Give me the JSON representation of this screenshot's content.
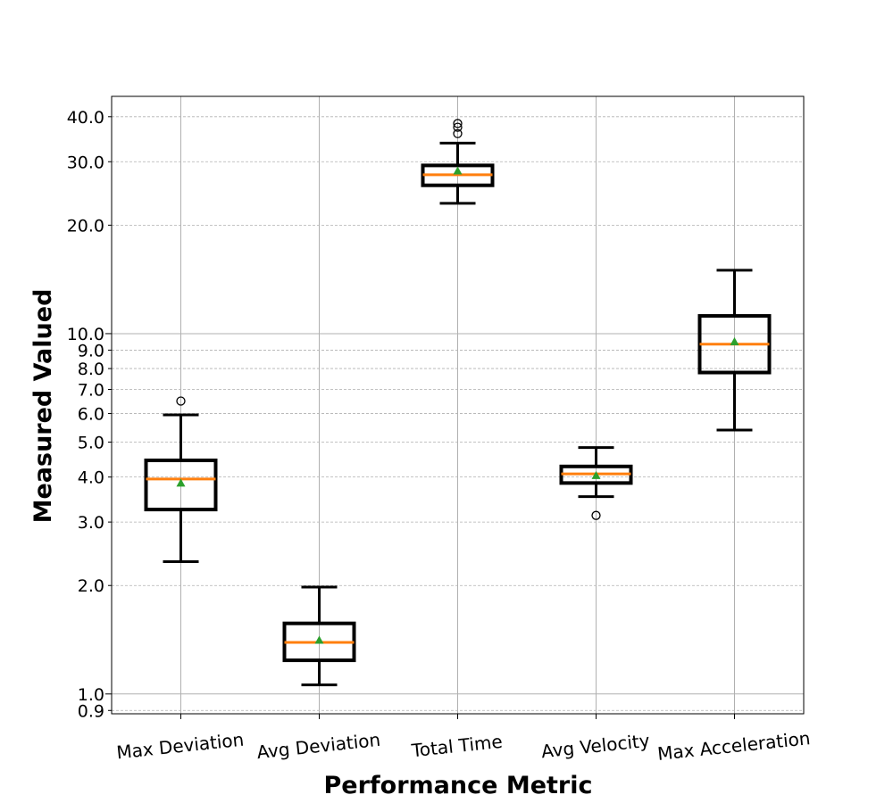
{
  "chart_data": {
    "type": "box",
    "xlabel": "Performance Metric",
    "ylabel": "Measured Valued",
    "yscale": "log",
    "ylim": [
      0.87,
      47
    ],
    "grid": true,
    "ticks": {
      "major": [
        "1.0",
        "10.0"
      ],
      "minor": [
        "0.9",
        "2.0",
        "3.0",
        "4.0",
        "5.0",
        "6.0",
        "7.0",
        "8.0",
        "9.0",
        "20.0",
        "30.0",
        "40.0"
      ]
    },
    "categories": [
      "Max Deviation",
      "Avg Deviation",
      "Total Time",
      "Avg Velocity",
      "Max Acceleration"
    ],
    "boxes": [
      {
        "whisker_low": 2.33,
        "q1": 3.25,
        "median": 3.95,
        "mean": 3.85,
        "q3": 4.45,
        "whisker_high": 5.95,
        "outliers": [
          6.5
        ]
      },
      {
        "whisker_low": 1.06,
        "q1": 1.24,
        "median": 1.39,
        "mean": 1.41,
        "q3": 1.57,
        "whisker_high": 1.98,
        "outliers": []
      },
      {
        "whisker_low": 23.0,
        "q1": 25.8,
        "median": 27.6,
        "mean": 28.3,
        "q3": 29.3,
        "whisker_high": 33.8,
        "outliers": [
          35.9,
          37.4,
          38.3
        ]
      },
      {
        "whisker_low": 3.53,
        "q1": 3.85,
        "median": 4.08,
        "mean": 4.04,
        "q3": 4.28,
        "whisker_high": 4.83,
        "outliers": [
          3.13
        ]
      },
      {
        "whisker_low": 5.4,
        "q1": 7.8,
        "median": 9.35,
        "mean": 9.5,
        "q3": 11.2,
        "whisker_high": 15.0,
        "outliers": []
      }
    ],
    "colors": {
      "box": "#000000",
      "median": "#ff7f0e",
      "mean": "#2ca02c",
      "grid": "#b0b0b0"
    }
  }
}
